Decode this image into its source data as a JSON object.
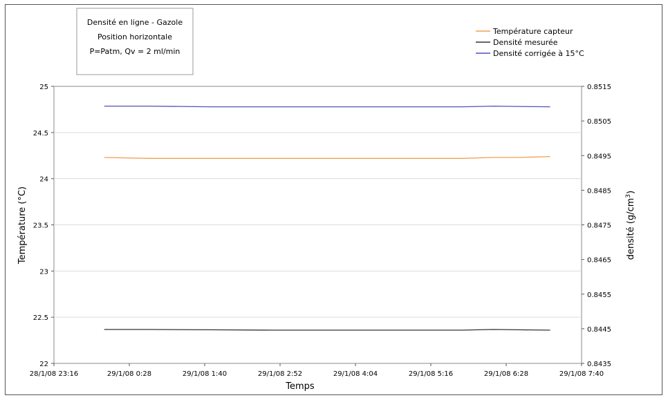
{
  "chart_data": {
    "type": "line",
    "title_lines": [
      "Densité en ligne - Gazole",
      "Position horizontale",
      "P=Patm, Qv = 2 ml/min"
    ],
    "xlabel": "Temps",
    "ylabel_left": "Température (°C)",
    "ylabel_right": "densité (g/cm3)",
    "ylabel_right_main": "densité (g/cm",
    "ylabel_right_sup": "3",
    "ylabel_right_close": ")",
    "x_ticks": [
      "28/1/08 23:16",
      "29/1/08 0:28",
      "29/1/08 1:40",
      "29/1/08 2:52",
      "29/1/08 4:04",
      "29/1/08 5:16",
      "29/1/08 6:28",
      "29/1/08 7:40"
    ],
    "x_range_hours": [
      0,
      8.4
    ],
    "y_left_ticks": [
      "22",
      "22.5",
      "23",
      "23.5",
      "24",
      "24.5",
      "25"
    ],
    "y_left_range": [
      22,
      25
    ],
    "y_right_ticks": [
      "0.8435",
      "0.8445",
      "0.8455",
      "0.8465",
      "0.8475",
      "0.8485",
      "0.8495",
      "0.8505",
      "0.8515"
    ],
    "y_right_range": [
      0.8435,
      0.8515
    ],
    "grid": true,
    "legend_position": "top-right",
    "series": [
      {
        "name": "Température capteur",
        "axis": "left",
        "color": "#f0a050",
        "x_hours_since_start": [
          0.8,
          1.5,
          2.5,
          3.5,
          4.5,
          5.5,
          6.5,
          7.0,
          7.4,
          7.9
        ],
        "values": [
          24.23,
          24.22,
          24.22,
          24.22,
          24.22,
          24.22,
          24.22,
          24.23,
          24.23,
          24.24
        ]
      },
      {
        "name": "Densité mesurée",
        "axis": "right",
        "color": "#333333",
        "x_hours_since_start": [
          0.8,
          1.5,
          2.5,
          3.5,
          4.5,
          5.5,
          6.5,
          7.0,
          7.4,
          7.9
        ],
        "values": [
          0.84448,
          0.84448,
          0.84447,
          0.84446,
          0.84446,
          0.84446,
          0.84446,
          0.84448,
          0.84447,
          0.84446
        ]
      },
      {
        "name": "Densité corrigée à 15°C",
        "axis": "right",
        "color": "#5050b8",
        "x_hours_since_start": [
          0.8,
          1.5,
          2.5,
          3.5,
          4.5,
          5.5,
          6.5,
          7.0,
          7.4,
          7.9
        ],
        "values": [
          0.85093,
          0.85093,
          0.85091,
          0.85091,
          0.85091,
          0.85091,
          0.85091,
          0.85093,
          0.85092,
          0.85091
        ]
      }
    ]
  }
}
